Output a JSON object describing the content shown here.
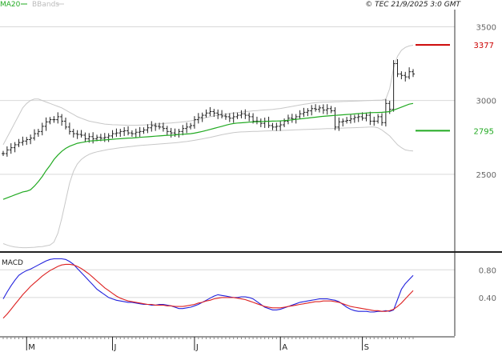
{
  "header": {
    "legend_ma": "MA20",
    "legend_bbands": "BBands",
    "credit": "© TEC 21/9/2025 3:0 GMT"
  },
  "colors": {
    "ma": "#22aa22",
    "bbands": "#c8c8c8",
    "price": "#222222",
    "resistance": "#cc0000",
    "support": "#22aa22",
    "macd": "#2222dd",
    "signal": "#dd2222",
    "grid": "#d9d9d9",
    "frame": "#333333"
  },
  "chart_data": [
    {
      "type": "line",
      "name": "price-panel",
      "ylim": [
        2000,
        3600
      ],
      "y_ticks": [
        {
          "value": 3500,
          "label": "3500"
        },
        {
          "value": 3000,
          "label": "3000"
        },
        {
          "value": 2500,
          "label": "2500"
        }
      ],
      "x_ticks": [
        {
          "index": 6,
          "label": "M"
        },
        {
          "index": 28,
          "label": "J"
        },
        {
          "index": 49,
          "label": "J"
        },
        {
          "index": 71,
          "label": "A"
        },
        {
          "index": 92,
          "label": "S"
        }
      ],
      "n_bars": 106,
      "close": [
        2640,
        2665,
        2680,
        2700,
        2715,
        2725,
        2735,
        2745,
        2775,
        2790,
        2825,
        2855,
        2870,
        2870,
        2890,
        2860,
        2820,
        2790,
        2775,
        2770,
        2765,
        2740,
        2755,
        2740,
        2750,
        2745,
        2750,
        2760,
        2775,
        2780,
        2790,
        2795,
        2780,
        2775,
        2785,
        2790,
        2800,
        2815,
        2830,
        2825,
        2820,
        2810,
        2790,
        2780,
        2770,
        2790,
        2810,
        2820,
        2830,
        2870,
        2885,
        2900,
        2915,
        2925,
        2915,
        2905,
        2895,
        2890,
        2880,
        2890,
        2900,
        2910,
        2900,
        2890,
        2860,
        2860,
        2845,
        2860,
        2830,
        2820,
        2825,
        2835,
        2860,
        2880,
        2875,
        2890,
        2910,
        2920,
        2930,
        2945,
        2940,
        2950,
        2935,
        2945,
        2930,
        2820,
        2855,
        2860,
        2865,
        2875,
        2885,
        2890,
        2880,
        2900,
        2860,
        2860,
        2890,
        2850,
        2980,
        2940,
        3250,
        3180,
        3170,
        3160,
        3195,
        3180
      ],
      "ma20": [
        2330,
        2340,
        2350,
        2360,
        2370,
        2380,
        2385,
        2395,
        2420,
        2450,
        2485,
        2525,
        2560,
        2600,
        2630,
        2655,
        2675,
        2690,
        2700,
        2710,
        2715,
        2720,
        2725,
        2727,
        2729,
        2731,
        2733,
        2735,
        2737,
        2739,
        2741,
        2743,
        2745,
        2746,
        2748,
        2750,
        2752,
        2754,
        2756,
        2758,
        2760,
        2762,
        2764,
        2765,
        2767,
        2769,
        2771,
        2773,
        2775,
        2779,
        2784,
        2790,
        2797,
        2804,
        2811,
        2818,
        2825,
        2832,
        2839,
        2844,
        2847,
        2849,
        2851,
        2853,
        2855,
        2856,
        2857,
        2858,
        2859,
        2860,
        2861,
        2862,
        2864,
        2866,
        2869,
        2872,
        2875,
        2878,
        2881,
        2884,
        2887,
        2890,
        2893,
        2895,
        2897,
        2899,
        2901,
        2903,
        2905,
        2907,
        2909,
        2911,
        2913,
        2915,
        2917,
        2918,
        2919,
        2920,
        2922,
        2925,
        2935,
        2945,
        2955,
        2965,
        2975,
        2980
      ],
      "bb_upper": [
        2700,
        2750,
        2800,
        2850,
        2900,
        2950,
        2980,
        3000,
        3010,
        3010,
        3000,
        2990,
        2980,
        2970,
        2960,
        2950,
        2935,
        2920,
        2905,
        2890,
        2880,
        2870,
        2860,
        2855,
        2850,
        2845,
        2840,
        2838,
        2836,
        2835,
        2834,
        2833,
        2832,
        2832,
        2832,
        2833,
        2834,
        2836,
        2838,
        2840,
        2842,
        2844,
        2846,
        2848,
        2850,
        2852,
        2855,
        2858,
        2862,
        2867,
        2872,
        2878,
        2884,
        2890,
        2895,
        2900,
        2904,
        2908,
        2912,
        2915,
        2918,
        2921,
        2924,
        2927,
        2930,
        2932,
        2934,
        2936,
        2938,
        2940,
        2943,
        2946,
        2950,
        2955,
        2960,
        2965,
        2970,
        2974,
        2978,
        2982,
        2985,
        2987,
        2988,
        2989,
        2990,
        2991,
        2992,
        2993,
        2994,
        2995,
        2996,
        2997,
        2998,
        2999,
        3000,
        3001,
        3002,
        3003,
        3010,
        3080,
        3220,
        3300,
        3340,
        3360,
        3370,
        3375
      ],
      "bb_lower": [
        2030,
        2020,
        2012,
        2007,
        2004,
        2002,
        2002,
        2003,
        2005,
        2008,
        2010,
        2015,
        2020,
        2040,
        2100,
        2200,
        2320,
        2440,
        2520,
        2570,
        2600,
        2620,
        2635,
        2645,
        2652,
        2658,
        2663,
        2668,
        2672,
        2676,
        2680,
        2683,
        2686,
        2689,
        2692,
        2695,
        2697,
        2699,
        2701,
        2703,
        2705,
        2707,
        2709,
        2711,
        2713,
        2716,
        2719,
        2722,
        2726,
        2730,
        2735,
        2740,
        2745,
        2750,
        2756,
        2762,
        2768,
        2773,
        2778,
        2782,
        2785,
        2787,
        2788,
        2789,
        2790,
        2791,
        2792,
        2793,
        2794,
        2795,
        2796,
        2797,
        2798,
        2799,
        2800,
        2801,
        2802,
        2803,
        2804,
        2805,
        2806,
        2807,
        2808,
        2809,
        2810,
        2811,
        2812,
        2813,
        2814,
        2815,
        2816,
        2817,
        2818,
        2819,
        2820,
        2820,
        2815,
        2800,
        2780,
        2760,
        2730,
        2700,
        2680,
        2665,
        2660,
        2658
      ],
      "levels": [
        {
          "name": "resistance",
          "value": 3377,
          "label": "3377"
        },
        {
          "name": "support",
          "value": 2795,
          "label": "2795"
        }
      ]
    },
    {
      "type": "line",
      "name": "MACD",
      "title": "MACD",
      "ylim": [
        0.04,
        1.0
      ],
      "y_ticks": [
        {
          "value": 0.8,
          "label": "0.80"
        },
        {
          "value": 0.4,
          "label": "0.40"
        }
      ],
      "series": [
        {
          "name": "MACD",
          "values": [
            0.38,
            0.48,
            0.57,
            0.65,
            0.72,
            0.76,
            0.79,
            0.81,
            0.84,
            0.87,
            0.9,
            0.93,
            0.95,
            0.96,
            0.96,
            0.96,
            0.95,
            0.92,
            0.88,
            0.82,
            0.76,
            0.7,
            0.64,
            0.58,
            0.52,
            0.48,
            0.44,
            0.4,
            0.38,
            0.36,
            0.35,
            0.34,
            0.33,
            0.33,
            0.32,
            0.31,
            0.3,
            0.3,
            0.29,
            0.29,
            0.3,
            0.3,
            0.29,
            0.28,
            0.26,
            0.24,
            0.24,
            0.25,
            0.26,
            0.28,
            0.3,
            0.33,
            0.36,
            0.39,
            0.42,
            0.44,
            0.43,
            0.42,
            0.41,
            0.4,
            0.4,
            0.41,
            0.41,
            0.4,
            0.38,
            0.34,
            0.3,
            0.26,
            0.24,
            0.22,
            0.22,
            0.23,
            0.25,
            0.27,
            0.29,
            0.31,
            0.33,
            0.34,
            0.35,
            0.36,
            0.37,
            0.38,
            0.38,
            0.38,
            0.37,
            0.36,
            0.34,
            0.3,
            0.26,
            0.23,
            0.21,
            0.2,
            0.2,
            0.2,
            0.19,
            0.19,
            0.2,
            0.2,
            0.21,
            0.2,
            0.22,
            0.37,
            0.52,
            0.6,
            0.66,
            0.72
          ]
        },
        {
          "name": "Signal",
          "values": [
            0.1,
            0.16,
            0.23,
            0.3,
            0.37,
            0.44,
            0.5,
            0.56,
            0.61,
            0.66,
            0.71,
            0.75,
            0.79,
            0.82,
            0.85,
            0.87,
            0.88,
            0.88,
            0.87,
            0.85,
            0.82,
            0.78,
            0.74,
            0.69,
            0.64,
            0.59,
            0.54,
            0.5,
            0.46,
            0.42,
            0.39,
            0.37,
            0.35,
            0.34,
            0.33,
            0.32,
            0.31,
            0.3,
            0.3,
            0.29,
            0.29,
            0.29,
            0.28,
            0.28,
            0.27,
            0.27,
            0.27,
            0.28,
            0.29,
            0.3,
            0.32,
            0.33,
            0.35,
            0.36,
            0.38,
            0.39,
            0.4,
            0.4,
            0.4,
            0.4,
            0.39,
            0.38,
            0.37,
            0.35,
            0.33,
            0.31,
            0.29,
            0.27,
            0.26,
            0.25,
            0.25,
            0.25,
            0.26,
            0.27,
            0.28,
            0.29,
            0.3,
            0.31,
            0.32,
            0.33,
            0.34,
            0.34,
            0.35,
            0.35,
            0.35,
            0.34,
            0.33,
            0.31,
            0.29,
            0.27,
            0.26,
            0.25,
            0.24,
            0.23,
            0.22,
            0.21,
            0.21,
            0.2,
            0.2,
            0.21,
            0.23,
            0.27,
            0.32,
            0.38,
            0.44,
            0.5
          ]
        }
      ]
    }
  ]
}
